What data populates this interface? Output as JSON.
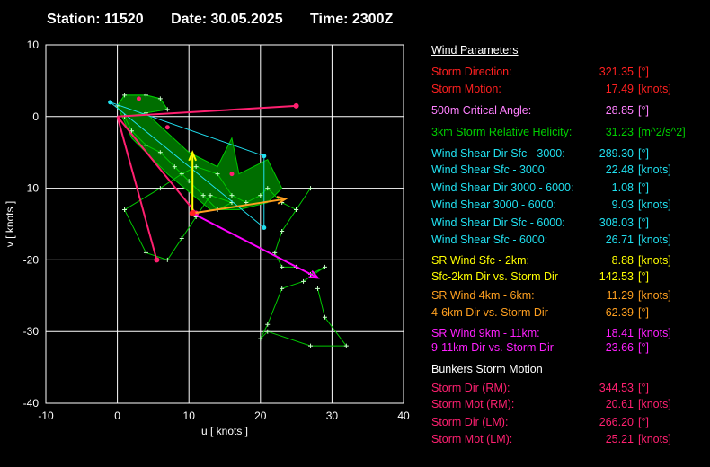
{
  "header": {
    "station": "Station: 11520",
    "date": "Date: 30.05.2025",
    "time": "Time: 2300Z"
  },
  "chart_data": {
    "type": "scatter",
    "xlabel": "u  [ knots ]",
    "ylabel": "v  [ knots ]",
    "xlim": [
      -10,
      40
    ],
    "ylim": [
      -40,
      10
    ],
    "xticks": [
      "-10",
      "0",
      "10",
      "20",
      "30",
      "40"
    ],
    "yticks": [
      "10",
      "0",
      "-10",
      "-20",
      "-30",
      "-40"
    ],
    "grid": true,
    "colors": {
      "hodograph": "#00c800",
      "fill": "#006e00",
      "storm_vectors": "#ff2070",
      "sfc_6km_shear": "#20e0f0",
      "sr_sfc_2km": "#ffff00",
      "sr_4_6km": "#ffa020",
      "sr_9_11km": "#ff00ff",
      "critical_angle": "#ff90ff"
    },
    "hodograph": [
      [
        0,
        1.5
      ],
      [
        1,
        3
      ],
      [
        4,
        3
      ],
      [
        6,
        2.5
      ],
      [
        7,
        1
      ],
      [
        4,
        0.5
      ],
      [
        1,
        0
      ],
      [
        2,
        -2
      ],
      [
        4,
        -4
      ],
      [
        6,
        -5
      ],
      [
        8,
        -7
      ],
      [
        10,
        -9
      ],
      [
        12,
        -11
      ],
      [
        14,
        -13
      ],
      [
        16,
        -12
      ],
      [
        13,
        -11
      ],
      [
        11,
        -14
      ],
      [
        9,
        -17
      ],
      [
        7,
        -20
      ],
      [
        4,
        -19
      ],
      [
        1,
        -13
      ],
      [
        6,
        -10
      ],
      [
        9,
        -8
      ],
      [
        11,
        -7
      ],
      [
        14,
        -8
      ],
      [
        16,
        -11
      ],
      [
        18,
        -12
      ],
      [
        20,
        -11
      ],
      [
        21,
        -10
      ],
      [
        23,
        -12
      ],
      [
        25,
        -13
      ],
      [
        27,
        -10
      ],
      [
        25,
        -13
      ],
      [
        23,
        -16
      ],
      [
        22,
        -19
      ],
      [
        23,
        -21
      ],
      [
        25,
        -21
      ],
      [
        27,
        -22
      ],
      [
        29,
        -21
      ],
      [
        26,
        -23
      ],
      [
        23,
        -24
      ],
      [
        21,
        -29
      ],
      [
        20,
        -31
      ],
      [
        21,
        -30
      ],
      [
        27,
        -32
      ],
      [
        32,
        -32
      ],
      [
        29,
        -28
      ],
      [
        28,
        -24
      ]
    ],
    "shaded_area": [
      [
        0,
        1.5
      ],
      [
        1,
        3
      ],
      [
        4,
        3
      ],
      [
        6,
        2.5
      ],
      [
        7,
        1
      ],
      [
        4,
        0.5
      ],
      [
        10,
        -5
      ],
      [
        14,
        -7
      ],
      [
        16,
        -3
      ],
      [
        17,
        -8
      ],
      [
        21,
        -6
      ],
      [
        23,
        -10
      ],
      [
        21,
        -12
      ],
      [
        17,
        -13
      ],
      [
        13,
        -13
      ],
      [
        7,
        -8
      ],
      [
        2,
        -3
      ]
    ],
    "storm_vectors": [
      [
        [
          0,
          0
        ],
        [
          25,
          1.5
        ]
      ],
      [
        [
          0,
          0
        ],
        [
          5.5,
          -20
        ]
      ],
      [
        [
          0,
          0
        ],
        [
          11,
          -13.5
        ]
      ]
    ],
    "shear_sfc_6km": [
      [
        -1,
        2
      ],
      [
        20.5,
        -5.5
      ],
      [
        20.5,
        -15.5
      ],
      [
        -1,
        2
      ]
    ],
    "sr_sfc_2km": [
      [
        10.5,
        -13.5
      ],
      [
        10.5,
        -5
      ]
    ],
    "sr_4_6km": [
      [
        10.5,
        -13.5
      ],
      [
        23.5,
        -11.5
      ]
    ],
    "sr_9_11km": [
      [
        10.5,
        -13.5
      ],
      [
        28,
        -22.5
      ]
    ],
    "critical_angle_points": [
      [
        3,
        2.5
      ],
      [
        7,
        -1.5
      ],
      [
        16,
        -8
      ]
    ],
    "storm_motion_point": [
      10.5,
      -13.5
    ],
    "annotations": []
  },
  "params": {
    "title": "Wind Parameters",
    "rows": [
      {
        "label": "Storm Direction:",
        "value": "321.35",
        "unit": "[°]",
        "color": "#ff2020"
      },
      {
        "label": "Storm Motion:",
        "value": "17.49",
        "unit": "[knots]",
        "color": "#ff2020"
      },
      {
        "label": "500m Critical Angle:",
        "value": "28.85",
        "unit": "[°]",
        "color": "#ff80ff"
      },
      {
        "label": "3km Storm Relative Helicity:",
        "value": "31.23",
        "unit": "[m^2/s^2]",
        "color": "#00d000"
      },
      {
        "label": "Wind Shear Dir Sfc - 3000:",
        "value": "289.30",
        "unit": "[°]",
        "color": "#20e0f0"
      },
      {
        "label": "Wind Shear Sfc - 3000:",
        "value": "22.48",
        "unit": "[knots]",
        "color": "#20e0f0"
      },
      {
        "label": "Wind Shear Dir 3000 - 6000:",
        "value": "1.08",
        "unit": "[°]",
        "color": "#20e0f0"
      },
      {
        "label": "Wind Shear 3000 - 6000:",
        "value": "9.03",
        "unit": "[knots]",
        "color": "#20e0f0"
      },
      {
        "label": "Wind Shear Dir Sfc - 6000:",
        "value": "308.03",
        "unit": "[°]",
        "color": "#20e0f0"
      },
      {
        "label": "Wind Shear Sfc - 6000:",
        "value": "26.71",
        "unit": "[knots]",
        "color": "#20e0f0"
      },
      {
        "label": "SR Wind Sfc - 2km:",
        "value": "8.88",
        "unit": "[knots]",
        "color": "#ffff00"
      },
      {
        "label": "Sfc-2km Dir vs. Storm Dir",
        "value": "142.53",
        "unit": "[°]",
        "color": "#ffff00"
      },
      {
        "label": "SR Wind 4km - 6km:",
        "value": "11.29",
        "unit": "[knots]",
        "color": "#ffa020"
      },
      {
        "label": "4-6km Dir vs. Storm Dir",
        "value": "62.39",
        "unit": "[°]",
        "color": "#ffa020"
      },
      {
        "label": "SR Wind 9km - 11km:",
        "value": "18.41",
        "unit": "[knots]",
        "color": "#ff20ff"
      },
      {
        "label": "9-11km Dir vs. Storm Dir",
        "value": "23.66",
        "unit": "[°]",
        "color": "#ff20ff"
      }
    ],
    "bunkers_title": "Bunkers Storm Motion",
    "bunkers": [
      {
        "label": "Storm Dir (RM):",
        "value": "344.53",
        "unit": "[°]",
        "color": "#ff2070"
      },
      {
        "label": "Storm Mot (RM):",
        "value": "20.61",
        "unit": "[knots]",
        "color": "#ff2070"
      },
      {
        "label": "Storm Dir (LM):",
        "value": "266.20",
        "unit": "[°]",
        "color": "#ff2070"
      },
      {
        "label": "Storm Mot (LM):",
        "value": "25.21",
        "unit": "[knots]",
        "color": "#ff2070"
      }
    ]
  }
}
